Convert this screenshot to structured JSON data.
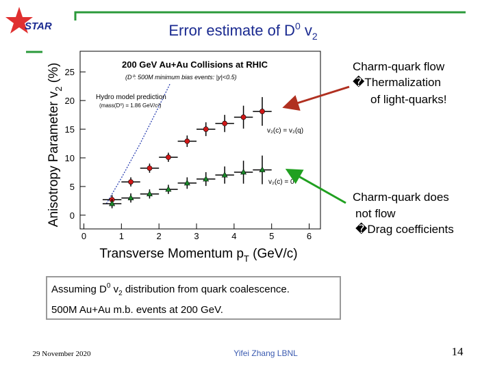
{
  "logo": "STAR",
  "title": [
    "Error estimate of D",
    "0",
    " v",
    "2"
  ],
  "chart_data": {
    "type": "scatter",
    "title": "200 GeV Au+Au Collisions at RHIC",
    "subtitle": "(D⁰: 500M minimum bias events: |y|<0.5)",
    "annotations": [
      "(mass(D⁰) = 1.86 GeV/c²)"
    ],
    "x_label": [
      "Transverse Momentum p",
      "T",
      " (GeV/c)"
    ],
    "y_label": [
      "Anisotropy Parameter v",
      "2",
      " (%)"
    ],
    "xlim": [
      -0.1,
      6.3
    ],
    "ylim": [
      -2.4,
      28.6
    ],
    "xticks": [
      0,
      1,
      2,
      3,
      4,
      5,
      6
    ],
    "yticks": [
      0,
      5,
      10,
      15,
      20,
      25
    ],
    "series": [
      {
        "name": "Hydro model prediction",
        "color": "#2a3fb0",
        "marker": "none",
        "line_style": "dotted",
        "x": [
          0.6,
          1.0,
          1.5,
          2.0,
          2.3
        ],
        "values": [
          2,
          6.5,
          12.5,
          19,
          23
        ]
      },
      {
        "name": "v₂(c) = v₂(q)",
        "color": "#d01818",
        "marker": "circle",
        "x": [
          0.75,
          1.25,
          1.75,
          2.25,
          2.75,
          3.25,
          3.75,
          4.25,
          4.75
        ],
        "values": [
          2.7,
          5.8,
          8.2,
          10.1,
          12.9,
          15.0,
          16.0,
          17.1,
          18.1
        ],
        "errors": [
          0.8,
          0.8,
          0.8,
          0.8,
          1.0,
          1.2,
          1.5,
          2.0,
          2.5
        ],
        "xerr": [
          0.25,
          0.25,
          0.25,
          0.25,
          0.25,
          0.25,
          0.25,
          0.25,
          0.25
        ]
      },
      {
        "name": "v₂(c) = 0",
        "color": "#1a8a2a",
        "marker": "triangle",
        "x": [
          0.75,
          1.25,
          1.75,
          2.25,
          2.75,
          3.25,
          3.75,
          4.25,
          4.75
        ],
        "values": [
          2.0,
          3.0,
          3.7,
          4.5,
          5.6,
          6.3,
          7.0,
          7.5,
          7.9
        ],
        "errors": [
          0.8,
          0.8,
          0.8,
          0.8,
          1.0,
          1.2,
          1.5,
          2.0,
          2.5
        ],
        "xerr": [
          0.25,
          0.25,
          0.25,
          0.25,
          0.25,
          0.25,
          0.25,
          0.25,
          0.25
        ]
      }
    ]
  },
  "callouts": [
    {
      "lines": [
        "Charm-quark flow",
        "�Thermalization",
        "of light-quarks!"
      ],
      "color": "#b03020"
    },
    {
      "lines": [
        "Charm-quark does",
        "not flow",
        "�Drag coefficients"
      ],
      "color": "#20a020"
    }
  ],
  "box": {
    "line1": [
      "Assuming D",
      "0",
      " v",
      "2",
      " distribution from quark coalescence."
    ],
    "line2": "500M Au+Au m.b. events at 200 GeV."
  },
  "footer": {
    "date": "29 November 2020",
    "author": "Yifei Zhang  LBNL",
    "page": "14"
  }
}
